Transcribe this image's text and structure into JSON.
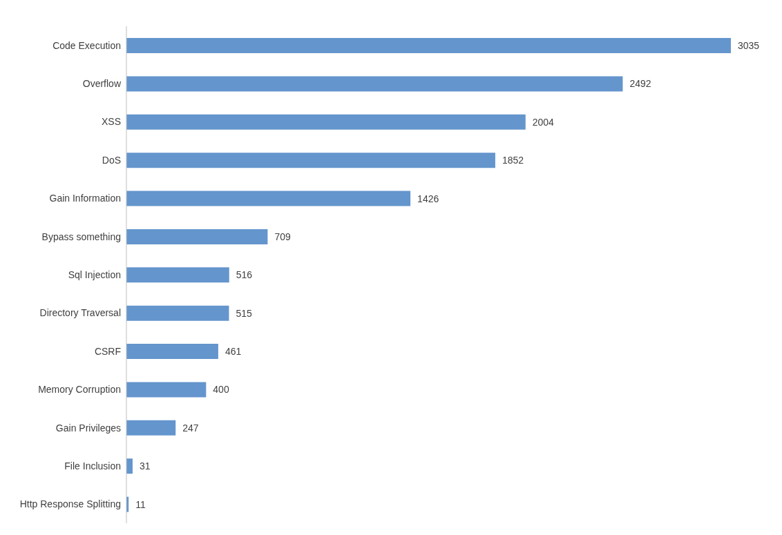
{
  "chart_data": {
    "type": "bar",
    "orientation": "horizontal",
    "categories": [
      "Code Execution",
      "Overflow",
      "XSS",
      "DoS",
      "Gain Information",
      "Bypass something",
      "Sql Injection",
      "Directory Traversal",
      "CSRF",
      "Memory Corruption",
      "Gain Privileges",
      "File Inclusion",
      "Http Response Splitting"
    ],
    "values": [
      3035,
      2492,
      2004,
      1852,
      1426,
      709,
      516,
      515,
      461,
      400,
      247,
      31,
      11
    ],
    "color": "#6495cd",
    "data_labels": true,
    "grid": false,
    "legend": false
  }
}
